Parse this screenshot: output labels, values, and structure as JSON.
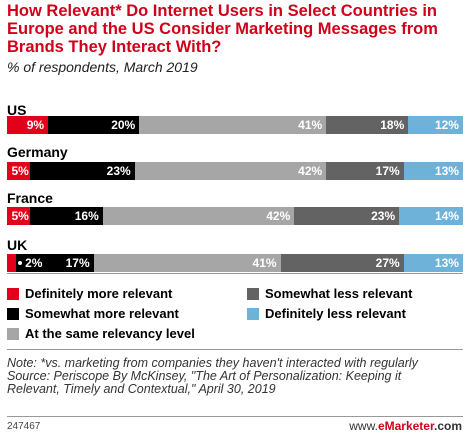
{
  "colors": {
    "definitely_more": "#e2001a",
    "somewhat_more": "#000000",
    "same": "#a6a6a6",
    "somewhat_less": "#636363",
    "definitely_less": "#6fb2d9"
  },
  "footer": {
    "chart_id": "247467",
    "brand_prefix": "www.",
    "brand_name": "eMarketer",
    "brand_suffix": ".com"
  },
  "chart_data": {
    "type": "bar",
    "orientation": "horizontal",
    "stacked": true,
    "title": "How Relevant* Do Internet Users in Select Countries in Europe and the US Consider Marketing Messages from Brands They Interact With?",
    "subtitle": "% of respondents, March 2019",
    "categories": [
      "US",
      "Germany",
      "France",
      "UK"
    ],
    "series": [
      {
        "name": "Definitely more relevant",
        "values": [
          9,
          5,
          5,
          2
        ],
        "labels": [
          "9%",
          "5%",
          "5%",
          ""
        ]
      },
      {
        "name": "Somewhat more relevant",
        "values": [
          20,
          23,
          16,
          17
        ],
        "labels": [
          "20%",
          "23%",
          "16%",
          "17%"
        ]
      },
      {
        "name": "At the same relevancy level",
        "values": [
          41,
          42,
          42,
          41
        ],
        "labels": [
          "41%",
          "42%",
          "42%",
          "41%"
        ]
      },
      {
        "name": "Somewhat less relevant",
        "values": [
          18,
          17,
          23,
          27
        ],
        "labels": [
          "18%",
          "17%",
          "23%",
          "27%"
        ]
      },
      {
        "name": "Definitely less relevant",
        "values": [
          12,
          13,
          14,
          13
        ],
        "labels": [
          "12%",
          "13%",
          "14%",
          "13%"
        ]
      }
    ],
    "callout": {
      "text": "2%",
      "category": "UK",
      "series": "Definitely more relevant"
    },
    "legend": {
      "placement": "bottom",
      "left": [
        "Definitely more relevant",
        "Somewhat more relevant",
        "At the same relevancy level"
      ],
      "right": [
        "Somewhat less relevant",
        "Definitely less relevant"
      ]
    },
    "note": "Note: *vs. marketing from companies they haven't interacted with regularly",
    "source": "Source: Periscope By McKinsey, \"The Art of Personalization: Keeping it Relevant, Timely and Contextual,\" April 30, 2019"
  }
}
